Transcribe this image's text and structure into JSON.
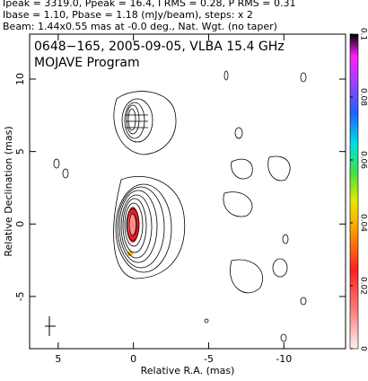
{
  "chart_data": {
    "type": "contour",
    "header": [
      "Ipeak = 3319.0, Ppeak = 16.4, I RMS = 0.28, P RMS = 0.31",
      "Ibase = 1.10, Pbase = 1.18 (mJy/beam), steps: x 2",
      "Beam: 1.44x0.55 mas at -0.0 deg., Nat. Wgt. (no taper)"
    ],
    "title": "0648−165, 2005-09-05, VLBA 15.4 GHz",
    "subtitle": "MOJAVE Program",
    "xlabel": "Relative R.A. (mas)",
    "ylabel": "Relative Declination (mas)",
    "xlim": [
      6.9,
      -14.1
    ],
    "xticks": [
      5,
      0,
      -5,
      -10
    ],
    "ylim": [
      -8.6,
      13.1
    ],
    "yticks": [
      -5,
      0,
      5,
      10
    ],
    "clim": [
      0,
      0.1
    ],
    "cticks": [
      0,
      0.02,
      0.04,
      0.06,
      0.08,
      0.1
    ]
  }
}
